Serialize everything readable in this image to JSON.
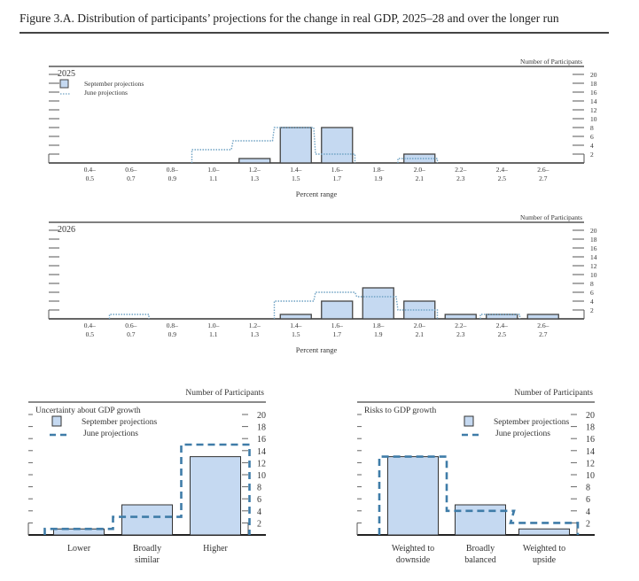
{
  "figure_title": "Figure 3.A. Distribution of participants’ projections for the change in real GDP, 2025–28 and over the longer run",
  "colors": {
    "september_fill": "#c5d9f1",
    "september_stroke": "#444444",
    "june_dotted": "#6fa2c4",
    "june_dashed": "#3f7ca8",
    "axis": "#333333"
  },
  "chart_data": [
    {
      "type": "bar",
      "title": "2025",
      "xlabel": "Percent range",
      "ylabel": "Number of Participants",
      "ylim": [
        0,
        20
      ],
      "yticks": [
        "2",
        "4",
        "6",
        "8",
        "10",
        "12",
        "14",
        "16",
        "18",
        "20"
      ],
      "categories": [
        "0.4– 0.5",
        "0.6– 0.7",
        "0.8– 0.9",
        "1.0– 1.1",
        "1.2– 1.3",
        "1.4– 1.5",
        "1.6– 1.7",
        "1.8– 1.9",
        "2.0– 2.1",
        "2.2– 2.3",
        "2.4– 2.5",
        "2.6– 2.7"
      ],
      "category_top": [
        "0.4–",
        "0.6–",
        "0.8–",
        "1.0–",
        "1.2–",
        "1.4–",
        "1.6–",
        "1.8–",
        "2.0–",
        "2.2–",
        "2.4–",
        "2.6–"
      ],
      "category_bottom": [
        "0.5",
        "0.7",
        "0.9",
        "1.1",
        "1.3",
        "1.5",
        "1.7",
        "1.9",
        "2.1",
        "2.3",
        "2.5",
        "2.7"
      ],
      "legend": [
        "September projections",
        "June projections"
      ],
      "legend_position": "top-left",
      "series": [
        {
          "name": "September projections",
          "values": [
            0,
            0,
            0,
            0,
            1,
            8,
            8,
            0,
            2,
            0,
            0,
            0
          ]
        },
        {
          "name": "June projections",
          "values": [
            0,
            0,
            0,
            3,
            5,
            8,
            2,
            0,
            1,
            0,
            0,
            0
          ]
        }
      ]
    },
    {
      "type": "bar",
      "title": "2026",
      "xlabel": "Percent range",
      "ylabel": "Number of Participants",
      "ylim": [
        0,
        20
      ],
      "yticks": [
        "2",
        "4",
        "6",
        "8",
        "10",
        "12",
        "14",
        "16",
        "18",
        "20"
      ],
      "categories": [
        "0.4– 0.5",
        "0.6– 0.7",
        "0.8– 0.9",
        "1.0– 1.1",
        "1.2– 1.3",
        "1.4– 1.5",
        "1.6– 1.7",
        "1.8– 1.9",
        "2.0– 2.1",
        "2.2– 2.3",
        "2.4– 2.5",
        "2.6– 2.7"
      ],
      "category_top": [
        "0.4–",
        "0.6–",
        "0.8–",
        "1.0–",
        "1.2–",
        "1.4–",
        "1.6–",
        "1.8–",
        "2.0–",
        "2.2–",
        "2.4–",
        "2.6–"
      ],
      "category_bottom": [
        "0.5",
        "0.7",
        "0.9",
        "1.1",
        "1.3",
        "1.5",
        "1.7",
        "1.9",
        "2.1",
        "2.3",
        "2.5",
        "2.7"
      ],
      "series": [
        {
          "name": "September projections",
          "values": [
            0,
            0,
            0,
            0,
            0,
            1,
            4,
            7,
            4,
            1,
            1,
            1
          ]
        },
        {
          "name": "June projections",
          "values": [
            0,
            1,
            0,
            0,
            0,
            4,
            6,
            5,
            2,
            0,
            1,
            0
          ]
        }
      ]
    },
    {
      "type": "bar",
      "title": "Uncertainty about GDP growth",
      "ylabel": "Number of Participants",
      "ylim": [
        0,
        20
      ],
      "yticks": [
        "2",
        "4",
        "6",
        "8",
        "10",
        "12",
        "14",
        "16",
        "18",
        "20"
      ],
      "categories": [
        "Lower",
        "Broadly similar",
        "Higher"
      ],
      "category_lines": [
        [
          "Lower"
        ],
        [
          "Broadly",
          "similar"
        ],
        [
          "Higher"
        ]
      ],
      "legend": [
        "September projections",
        "June projections"
      ],
      "legend_position": "top-left",
      "series": [
        {
          "name": "September projections",
          "values": [
            1,
            5,
            13
          ]
        },
        {
          "name": "June projections",
          "values": [
            1,
            3,
            15
          ]
        }
      ]
    },
    {
      "type": "bar",
      "title": "Risks to GDP growth",
      "ylabel": "Number of Participants",
      "ylim": [
        0,
        20
      ],
      "yticks": [
        "2",
        "4",
        "6",
        "8",
        "10",
        "12",
        "14",
        "16",
        "18",
        "20"
      ],
      "categories": [
        "Weighted to downside",
        "Broadly balanced",
        "Weighted to upside"
      ],
      "category_lines": [
        [
          "Weighted to",
          "downside"
        ],
        [
          "Broadly",
          "balanced"
        ],
        [
          "Weighted to",
          "upside"
        ]
      ],
      "legend": [
        "September projections",
        "June projections"
      ],
      "legend_position": "top-right",
      "series": [
        {
          "name": "September projections",
          "values": [
            13,
            5,
            1
          ]
        },
        {
          "name": "June projections",
          "values": [
            13,
            4,
            2
          ]
        }
      ]
    }
  ]
}
